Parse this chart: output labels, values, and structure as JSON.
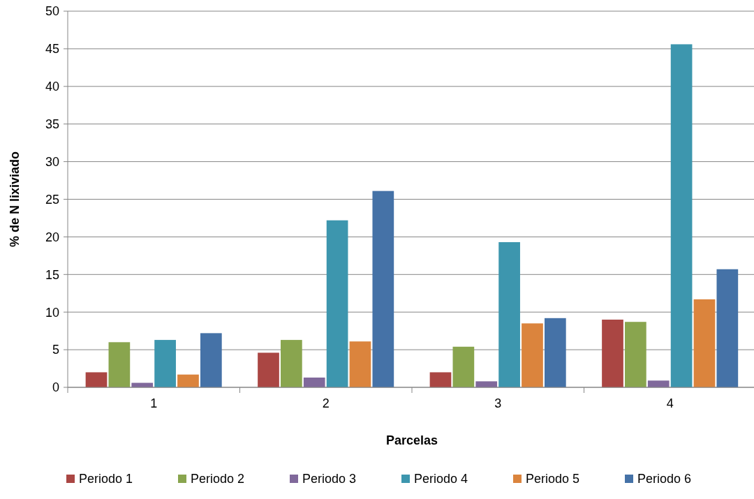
{
  "chart_data": {
    "type": "bar",
    "xlabel": "Parcelas",
    "ylabel": "% de N lixiviado",
    "categories": [
      "1",
      "2",
      "3",
      "4"
    ],
    "series": [
      {
        "name": "Periodo 1",
        "color": "#aa4643",
        "values": [
          2.0,
          4.6,
          2.0,
          9.0
        ]
      },
      {
        "name": "Periodo 2",
        "color": "#89a54e",
        "values": [
          6.0,
          6.3,
          5.4,
          8.7
        ]
      },
      {
        "name": "Periodo 3",
        "color": "#80699b",
        "values": [
          0.6,
          1.3,
          0.8,
          0.9
        ]
      },
      {
        "name": "Periodo 4",
        "color": "#3d96ae",
        "values": [
          6.3,
          22.2,
          19.3,
          45.6
        ]
      },
      {
        "name": "Periodo 5",
        "color": "#db843d",
        "values": [
          1.7,
          6.1,
          8.5,
          11.7
        ]
      },
      {
        "name": "Periodo 6",
        "color": "#4572a7",
        "values": [
          7.2,
          26.1,
          9.2,
          15.7
        ]
      }
    ],
    "ylim": [
      0,
      50
    ],
    "yticks": [
      0,
      5,
      10,
      15,
      20,
      25,
      30,
      35,
      40,
      45,
      50
    ],
    "grid": "y",
    "legend": "bottom"
  }
}
